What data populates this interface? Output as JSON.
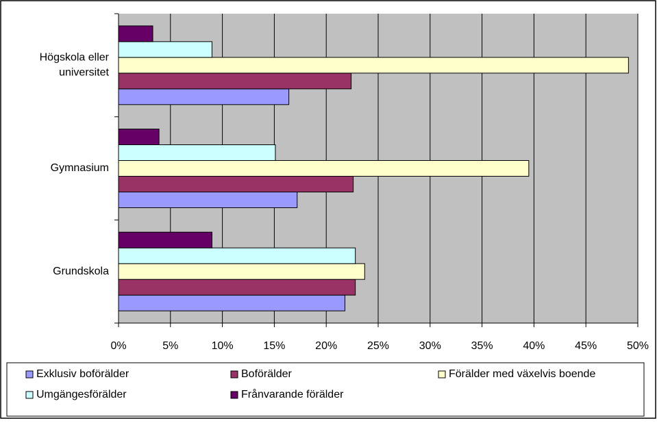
{
  "chart_data": {
    "type": "barh",
    "categories": [
      "Grundskola",
      "Gymnasium",
      "Högskola eller universitet"
    ],
    "series": [
      {
        "name": "Exklusiv boförälder",
        "color": "#9999ff",
        "values": [
          21.8,
          17.2,
          16.4
        ]
      },
      {
        "name": "Boförälder",
        "color": "#993366",
        "values": [
          22.8,
          22.6,
          22.4
        ]
      },
      {
        "name": "Förälder med växelvis boende",
        "color": "#ffffcc",
        "values": [
          23.7,
          39.5,
          49.1
        ]
      },
      {
        "name": "Umgängesförälder",
        "color": "#ccffff",
        "values": [
          22.8,
          15.1,
          9.0
        ]
      },
      {
        "name": "Frånvarande förälder",
        "color": "#660066",
        "values": [
          9.0,
          3.9,
          3.3
        ]
      }
    ],
    "xlim": [
      0,
      50
    ],
    "xticks": [
      {
        "value": 0,
        "label": "0%"
      },
      {
        "value": 5,
        "label": "5%"
      },
      {
        "value": 10,
        "label": "10%"
      },
      {
        "value": 15,
        "label": "15%"
      },
      {
        "value": 20,
        "label": "20%"
      },
      {
        "value": 25,
        "label": "25%"
      },
      {
        "value": 30,
        "label": "30%"
      },
      {
        "value": 35,
        "label": "35%"
      },
      {
        "value": 40,
        "label": "40%"
      },
      {
        "value": 45,
        "label": "45%"
      },
      {
        "value": 50,
        "label": "50%"
      }
    ],
    "grid": true,
    "legend": "bottom"
  }
}
